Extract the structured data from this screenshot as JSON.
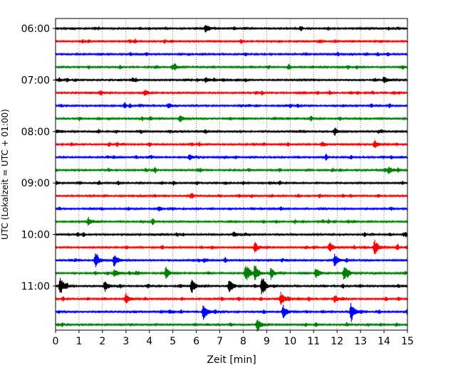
{
  "chart_data": {
    "type": "line",
    "title": "",
    "xlabel": "Zeit  [min]",
    "ylabel": "UTC (Lokalzeit = UTC + 01:00)",
    "xlim": [
      0,
      15
    ],
    "x_ticks": [
      "0",
      "1",
      "2",
      "3",
      "4",
      "5",
      "6",
      "7",
      "8",
      "9",
      "10",
      "11",
      "12",
      "13",
      "14",
      "15"
    ],
    "y_ticks": [
      "06:00",
      "07:00",
      "08:00",
      "09:00",
      "10:00",
      "11:00"
    ],
    "grid": "vertical dotted",
    "trace_interval_min": 15,
    "series_colors": [
      "#000000",
      "#ff0000",
      "#0000ff",
      "#008000"
    ],
    "traces": [
      {
        "start": "06:00",
        "color": "#000000",
        "events": [
          [
            6.4,
            6
          ]
        ]
      },
      {
        "start": "06:15",
        "color": "#ff0000",
        "events": []
      },
      {
        "start": "06:30",
        "color": "#0000ff",
        "events": []
      },
      {
        "start": "06:45",
        "color": "#008000",
        "events": [
          [
            5.1,
            4
          ]
        ]
      },
      {
        "start": "07:00",
        "color": "#000000",
        "events": [
          [
            6.4,
            4
          ],
          [
            14.0,
            5
          ]
        ]
      },
      {
        "start": "07:15",
        "color": "#ff0000",
        "events": [
          [
            3.8,
            5
          ]
        ]
      },
      {
        "start": "07:30",
        "color": "#0000ff",
        "events": [
          [
            4.8,
            4
          ]
        ]
      },
      {
        "start": "07:45",
        "color": "#008000",
        "events": [
          [
            5.3,
            5
          ]
        ]
      },
      {
        "start": "08:00",
        "color": "#000000",
        "events": [
          [
            11.9,
            4
          ]
        ]
      },
      {
        "start": "08:15",
        "color": "#ff0000",
        "events": [
          [
            13.6,
            6
          ]
        ]
      },
      {
        "start": "08:30",
        "color": "#0000ff",
        "events": [
          [
            5.7,
            4
          ]
        ]
      },
      {
        "start": "08:45",
        "color": "#008000",
        "events": [
          [
            14.2,
            6
          ]
        ]
      },
      {
        "start": "09:00",
        "color": "#000000",
        "events": []
      },
      {
        "start": "09:15",
        "color": "#ff0000",
        "events": []
      },
      {
        "start": "09:30",
        "color": "#0000ff",
        "events": []
      },
      {
        "start": "09:45",
        "color": "#008000",
        "events": [
          [
            1.4,
            6
          ]
        ]
      },
      {
        "start": "10:00",
        "color": "#000000",
        "events": [
          [
            7.6,
            4
          ]
        ]
      },
      {
        "start": "10:15",
        "color": "#ff0000",
        "events": [
          [
            8.5,
            6
          ],
          [
            11.7,
            6
          ],
          [
            13.6,
            11
          ]
        ]
      },
      {
        "start": "10:30",
        "color": "#0000ff",
        "events": [
          [
            1.7,
            10
          ],
          [
            2.5,
            9
          ],
          [
            11.9,
            9
          ]
        ]
      },
      {
        "start": "10:45",
        "color": "#008000",
        "events": [
          [
            2.5,
            7
          ],
          [
            4.7,
            8
          ],
          [
            8.1,
            12
          ],
          [
            8.5,
            13
          ],
          [
            9.2,
            7
          ],
          [
            11.1,
            8
          ],
          [
            12.3,
            11
          ]
        ]
      },
      {
        "start": "11:00",
        "color": "#000000",
        "events": [
          [
            0.2,
            13
          ],
          [
            2.1,
            8
          ],
          [
            5.8,
            11
          ],
          [
            7.4,
            10
          ],
          [
            8.8,
            13
          ]
        ]
      },
      {
        "start": "11:15",
        "color": "#ff0000",
        "events": [
          [
            3.0,
            8
          ],
          [
            9.6,
            10
          ],
          [
            11.9,
            6
          ]
        ]
      },
      {
        "start": "11:30",
        "color": "#0000ff",
        "events": [
          [
            6.3,
            13
          ],
          [
            9.7,
            10
          ],
          [
            12.6,
            14
          ],
          [
            15.0,
            5
          ]
        ]
      },
      {
        "start": "11:45",
        "color": "#008000",
        "events": [
          [
            8.6,
            10
          ]
        ]
      }
    ]
  }
}
